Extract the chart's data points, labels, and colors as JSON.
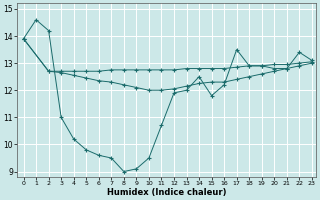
{
  "xlabel": "Humidex (Indice chaleur)",
  "bg_color": "#cce8e8",
  "line_color": "#1a6b6b",
  "grid_color": "#ffffff",
  "xlim": [
    -0.5,
    23.3
  ],
  "ylim": [
    8.8,
    15.2
  ],
  "yticks": [
    9,
    10,
    11,
    12,
    13,
    14,
    15
  ],
  "xticks": [
    0,
    1,
    2,
    3,
    4,
    5,
    6,
    7,
    8,
    9,
    10,
    11,
    12,
    13,
    14,
    15,
    16,
    17,
    18,
    19,
    20,
    21,
    22,
    23
  ],
  "series1_x": [
    0,
    1,
    2,
    3,
    4,
    5,
    6,
    7,
    8,
    9,
    10,
    11,
    12,
    13,
    14,
    15,
    16,
    17,
    18,
    19,
    20,
    21,
    22,
    23
  ],
  "series1_y": [
    13.9,
    14.6,
    14.2,
    11.0,
    10.2,
    9.8,
    9.6,
    9.5,
    9.0,
    9.1,
    9.5,
    10.7,
    11.9,
    12.0,
    12.5,
    11.8,
    12.2,
    13.5,
    12.9,
    12.9,
    12.8,
    12.8,
    13.4,
    13.1
  ],
  "series2_x": [
    0,
    2,
    3,
    4,
    5,
    6,
    7,
    8,
    9,
    10,
    11,
    12,
    13,
    14,
    15,
    16,
    17,
    18,
    19,
    20,
    21,
    22,
    23
  ],
  "series2_y": [
    13.9,
    12.7,
    12.7,
    12.7,
    12.7,
    12.7,
    12.75,
    12.75,
    12.75,
    12.75,
    12.75,
    12.75,
    12.8,
    12.8,
    12.8,
    12.8,
    12.85,
    12.9,
    12.9,
    12.95,
    12.95,
    13.0,
    13.05
  ],
  "series3_x": [
    0,
    2,
    3,
    4,
    5,
    6,
    7,
    8,
    9,
    10,
    11,
    12,
    13,
    14,
    15,
    16,
    17,
    18,
    19,
    20,
    21,
    22,
    23
  ],
  "series3_y": [
    13.9,
    12.7,
    12.65,
    12.55,
    12.45,
    12.35,
    12.3,
    12.2,
    12.1,
    12.0,
    12.0,
    12.05,
    12.15,
    12.25,
    12.3,
    12.3,
    12.4,
    12.5,
    12.6,
    12.7,
    12.8,
    12.9,
    13.0
  ]
}
